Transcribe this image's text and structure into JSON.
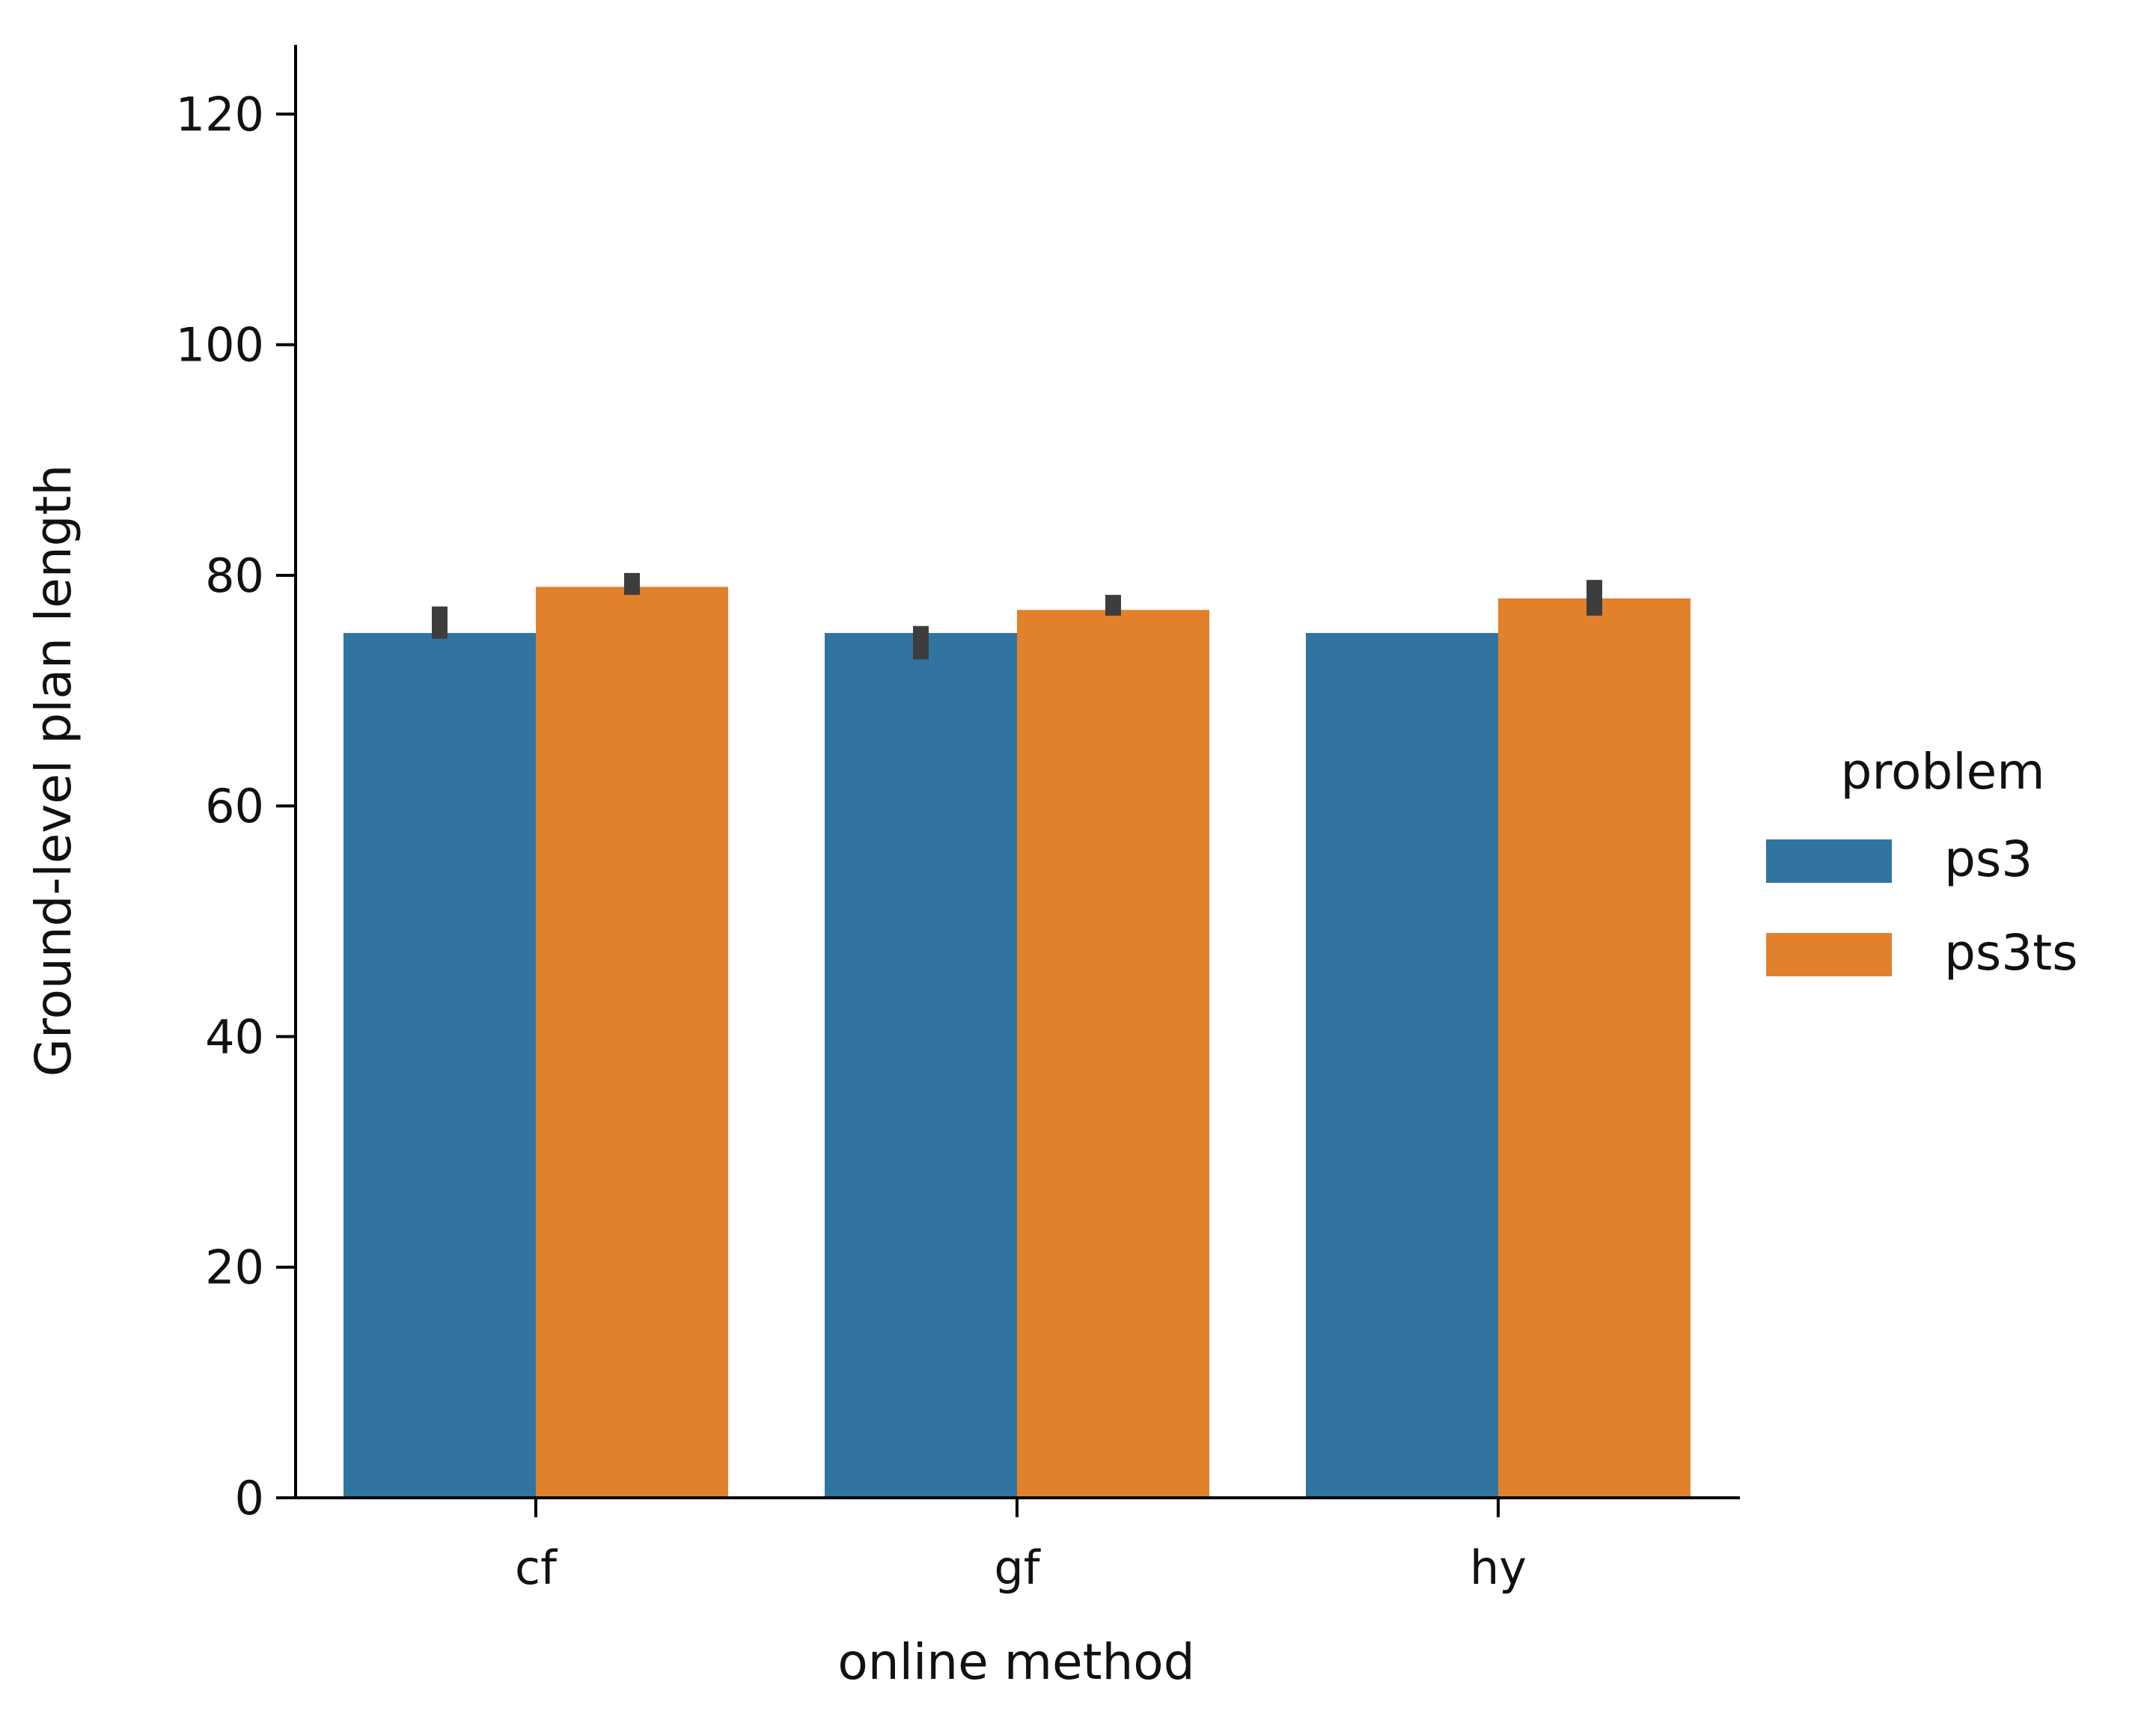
{
  "chart_data": {
    "type": "bar",
    "xlabel": "online method",
    "ylabel": "Ground-level plan length",
    "categories": [
      "cf",
      "gf",
      "hy"
    ],
    "ylim": [
      0,
      126
    ],
    "yticks": [
      0,
      20,
      40,
      60,
      80,
      100,
      120
    ],
    "series": [
      {
        "name": "ps3",
        "color": "#3274a1",
        "values": [
          75,
          75,
          75
        ],
        "error_low": [
          74.5,
          72.7,
          75
        ],
        "error_high": [
          77.3,
          75.6,
          75
        ]
      },
      {
        "name": "ps3ts",
        "color": "#e1812c",
        "values": [
          79,
          77,
          78
        ],
        "error_low": [
          78.3,
          76.5,
          76.5
        ],
        "error_high": [
          80.2,
          78.3,
          79.6
        ]
      }
    ],
    "error_bar_color": "#3d3d3d",
    "legend": {
      "title": "problem",
      "placement": "right"
    },
    "grid": false
  }
}
